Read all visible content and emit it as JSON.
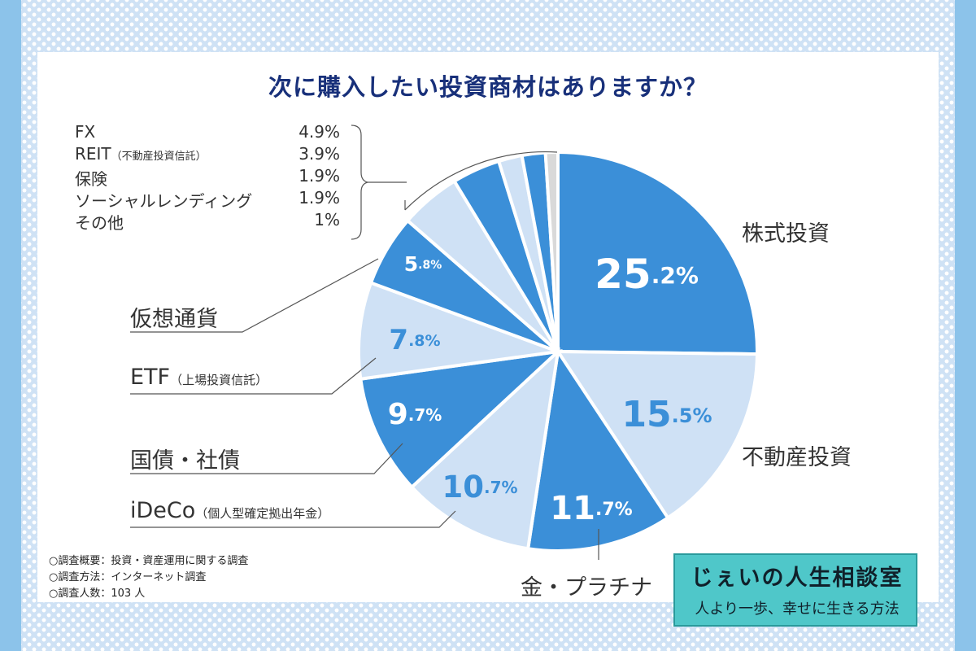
{
  "title": "次に購入したい投資商材はありますか？",
  "chart_data": {
    "type": "pie",
    "title": "次に購入したい投資商材はありますか？",
    "unit": "%",
    "slices": [
      {
        "label": "株式投資",
        "value": 25.2,
        "color": "#3b8fd8",
        "value_text": "25",
        "value_suffix": ".2%"
      },
      {
        "label": "不動産投資",
        "value": 15.5,
        "color": "#cfe1f5",
        "value_text": "15",
        "value_suffix": ".5%"
      },
      {
        "label": "金・プラチナ",
        "value": 11.7,
        "color": "#3b8fd8",
        "value_text": "11",
        "value_suffix": ".7%"
      },
      {
        "label": "iDeCo",
        "sublabel": "（個人型確定拠出年金）",
        "value": 10.7,
        "color": "#cfe1f5",
        "value_text": "10",
        "value_suffix": ".7%"
      },
      {
        "label": "国債・社債",
        "value": 9.7,
        "color": "#3b8fd8",
        "value_text": "9",
        "value_suffix": ".7%"
      },
      {
        "label": "ETF",
        "sublabel": "（上場投資信託）",
        "value": 7.8,
        "color": "#cfe1f5",
        "value_text": "7",
        "value_suffix": ".8%"
      },
      {
        "label": "仮想通貨",
        "value": 5.8,
        "color": "#3b8fd8",
        "value_text": "5",
        "value_suffix": ".8%"
      },
      {
        "label": "FX",
        "value": 4.9,
        "color": "#cfe1f5",
        "value_text": "4.9%"
      },
      {
        "label": "REIT",
        "sublabel": "（不動産投資信託）",
        "value": 3.9,
        "color": "#3b8fd8",
        "value_text": "3.9%"
      },
      {
        "label": "保険",
        "value": 1.9,
        "color": "#cfe1f5",
        "value_text": "1.9%"
      },
      {
        "label": "ソーシャルレンディング",
        "value": 1.9,
        "color": "#3b8fd8",
        "value_text": "1.9%"
      },
      {
        "label": "その他",
        "value": 1,
        "color": "#d9d9d9",
        "value_text": "1%"
      }
    ]
  },
  "survey": {
    "overview": "○調査概要：投資・資産運用に関する調査",
    "method": "○調査方法：インターネット調査",
    "count": "○調査人数：103 人"
  },
  "logo": {
    "line1": "じぇいの人生相談室",
    "line2": "人より一歩、幸せに生きる方法"
  }
}
